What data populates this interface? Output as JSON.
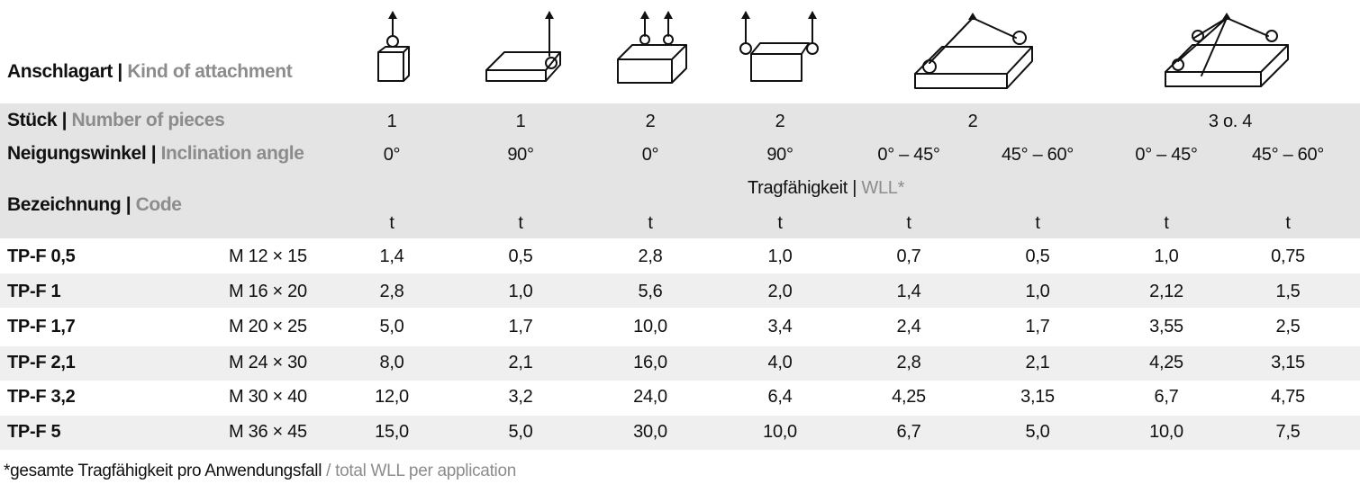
{
  "header": {
    "attachment_label": "Anschlagart",
    "attachment_label_en": "Kind of attachment",
    "pieces_label": "Stück",
    "pieces_label_en": "Number of pieces",
    "angle_label": "Neigungswinkel",
    "angle_label_en": "Inclination angle",
    "code_label": "Bezeichnung",
    "code_label_en": "Code",
    "separator": " | ",
    "wll_label": "Tragfähigkeit",
    "wll_label_en": "WLL*"
  },
  "pieces": [
    "1",
    "1",
    "2",
    "2",
    "2",
    "3 o. 4"
  ],
  "angles": [
    "0°",
    "90°",
    "0°",
    "90°",
    "0° – 45°",
    "45° – 60°",
    "0° – 45°",
    "45° – 60°"
  ],
  "units": [
    "t",
    "t",
    "t",
    "t",
    "t",
    "t",
    "t",
    "t"
  ],
  "icons": [
    "single-vertical-lift-icon",
    "single-side-lift-icon",
    "two-point-vertical-lift-icon",
    "two-point-side-lift-icon",
    "two-leg-sling-icon",
    "multi-leg-sling-icon"
  ],
  "rows": [
    {
      "name": "TP-F 0,5",
      "thread": "M 12 × 15",
      "values": [
        "1,4",
        "0,5",
        "2,8",
        "1,0",
        "0,7",
        "0,5",
        "1,0",
        "0,75"
      ]
    },
    {
      "name": "TP-F 1",
      "thread": "M 16 × 20",
      "values": [
        "2,8",
        "1,0",
        "5,6",
        "2,0",
        "1,4",
        "1,0",
        "2,12",
        "1,5"
      ]
    },
    {
      "name": "TP-F 1,7",
      "thread": "M 20 × 25",
      "values": [
        "5,0",
        "1,7",
        "10,0",
        "3,4",
        "2,4",
        "1,7",
        "3,55",
        "2,5"
      ]
    },
    {
      "name": "TP-F 2,1",
      "thread": "M 24 × 30",
      "values": [
        "8,0",
        "2,1",
        "16,0",
        "4,0",
        "2,8",
        "2,1",
        "4,25",
        "3,15"
      ]
    },
    {
      "name": "TP-F 3,2",
      "thread": "M 30 × 40",
      "values": [
        "12,0",
        "3,2",
        "24,0",
        "6,4",
        "4,25",
        "3,15",
        "6,7",
        "4,75"
      ]
    },
    {
      "name": "TP-F 5",
      "thread": "M 36 × 45",
      "values": [
        "15,0",
        "5,0",
        "30,0",
        "10,0",
        "6,7",
        "5,0",
        "10,0",
        "7,5"
      ]
    }
  ],
  "footnote": {
    "de": "*gesamte Tragfähigkeit pro Anwendungsfall",
    "separator": " / ",
    "en": "total WLL per application"
  }
}
